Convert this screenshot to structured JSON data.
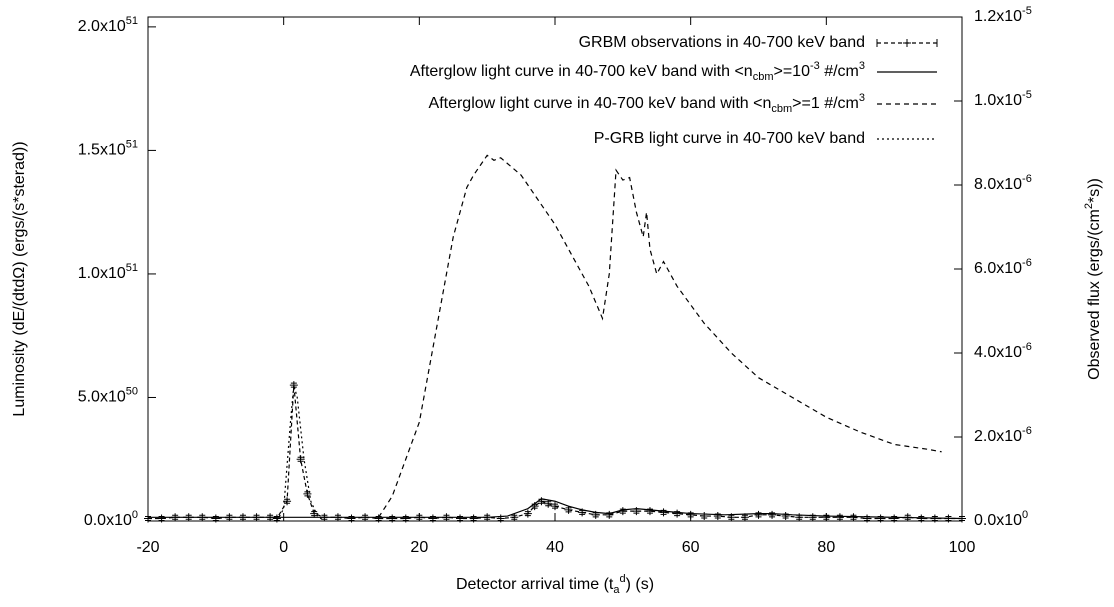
{
  "chart_data": {
    "type": "line",
    "xlabel": "Detector arrival time (t_{a}^{d}) (s)",
    "ylabel": "Luminosity (dE/(dtdΩ) (ergs/(s*sterad))",
    "y2label": "Observed flux (ergs/(cm^{2}*s))",
    "xlim": [
      -20,
      100
    ],
    "xticks": [
      -20,
      0,
      20,
      40,
      60,
      80,
      100
    ],
    "ylim": [
      0,
      2.04e+51
    ],
    "yticks": [
      {
        "value": 0,
        "label": "0.0x10^{0}"
      },
      {
        "value": 5e+50,
        "label": "5.0x10^{50}"
      },
      {
        "value": 1e+51,
        "label": "1.0x10^{51}"
      },
      {
        "value": 1.5e+51,
        "label": "1.5x10^{51}"
      },
      {
        "value": 2e+51,
        "label": "2.0x10^{51}"
      }
    ],
    "y2lim": [
      0,
      1.2e-05
    ],
    "y2ticks": [
      {
        "value": 0,
        "label": "0.0x10^{0}"
      },
      {
        "value": 2e-06,
        "label": "2.0x10^{-6}"
      },
      {
        "value": 4e-06,
        "label": "4.0x10^{-6}"
      },
      {
        "value": 6e-06,
        "label": "6.0x10^{-6}"
      },
      {
        "value": 8e-06,
        "label": "8.0x10^{-6}"
      },
      {
        "value": 1e-05,
        "label": "1.0x10^{-5}"
      },
      {
        "value": 1.2e-05,
        "label": "1.2x10^{-5}"
      }
    ],
    "legend": "top-right",
    "series": [
      {
        "name": "GRBM observations in 40-700 keV band",
        "color": "#000000",
        "style": "points-errorbars",
        "x": [
          -20,
          -18,
          -16,
          -14,
          -12,
          -10,
          -8,
          -6,
          -4,
          -2,
          -1,
          0.5,
          1.5,
          2.5,
          3.5,
          4.5,
          6,
          8,
          10,
          12,
          14,
          16,
          18,
          20,
          22,
          24,
          26,
          28,
          30,
          32,
          34,
          36,
          37,
          38,
          39,
          40,
          42,
          44,
          46,
          48,
          50,
          52,
          54,
          56,
          58,
          60,
          62,
          64,
          66,
          68,
          70,
          72,
          74,
          76,
          78,
          80,
          82,
          84,
          86,
          88,
          90,
          92,
          94,
          96,
          98,
          100
        ],
        "values": [
          1e+49,
          1e+49,
          1.5e+49,
          1.5e+49,
          1.5e+49,
          1e+49,
          1.5e+49,
          1.5e+49,
          1.5e+49,
          1.5e+49,
          1e+49,
          8e+49,
          5.5e+50,
          2.5e+50,
          1.1e+50,
          3e+49,
          1.5e+49,
          1.5e+49,
          1e+49,
          1.5e+49,
          1e+49,
          1e+49,
          1e+49,
          1.5e+49,
          1e+49,
          1.5e+49,
          1e+49,
          1e+49,
          1.5e+49,
          1e+49,
          1.5e+49,
          3e+49,
          6e+49,
          8e+49,
          7e+49,
          6e+49,
          4.5e+49,
          3.5e+49,
          2.5e+49,
          2.5e+49,
          4e+49,
          4e+49,
          4e+49,
          3.5e+49,
          3e+49,
          2.5e+49,
          2e+49,
          2e+49,
          1.5e+49,
          1.5e+49,
          2.5e+49,
          2.5e+49,
          2e+49,
          1.5e+49,
          1.5e+49,
          1.5e+49,
          1.5e+49,
          1.5e+49,
          1e+49,
          1e+49,
          1e+49,
          1.5e+49,
          1e+49,
          1e+49,
          1e+49,
          1e+49
        ]
      },
      {
        "name": "Afterglow light curve in 40-700 keV band with <n_{cbm}>=10^{-3} #/cm^{3}",
        "color": "#000000",
        "style": "solid",
        "x": [
          -20,
          0,
          10,
          20,
          30,
          33,
          36,
          38,
          40,
          42,
          44,
          46,
          48,
          50,
          52,
          54,
          56,
          60,
          65,
          70,
          72,
          75,
          80,
          90,
          100
        ],
        "values": [
          1.5e+49,
          1.5e+49,
          1.5e+49,
          1.5e+49,
          1.5e+49,
          2e+49,
          5e+49,
          9e+49,
          8e+49,
          6e+49,
          4.5e+49,
          3.5e+49,
          3e+49,
          4.5e+49,
          5e+49,
          4.5e+49,
          4e+49,
          3e+49,
          2.5e+49,
          3e+49,
          3e+49,
          2.5e+49,
          2e+49,
          1.5e+49,
          1e+49
        ]
      },
      {
        "name": "Afterglow light curve in 40-700 keV band with <n_{cbm}>=1 #/cm^{3}",
        "color": "#000000",
        "style": "dashed",
        "x": [
          14,
          16,
          18,
          20,
          22,
          25,
          27,
          28,
          29,
          30,
          31,
          32,
          35,
          40,
          45,
          47,
          48,
          49,
          50,
          51,
          52,
          53,
          53.5,
          54,
          55,
          56,
          58,
          62,
          66,
          70,
          75,
          80,
          85,
          90,
          95,
          97
        ],
        "values": [
          1.5e+49,
          1e+50,
          2.5e+50,
          4e+50,
          7e+50,
          1.15e+51,
          1.35e+51,
          1.4e+51,
          1.44e+51,
          1.48e+51,
          1.46e+51,
          1.47e+51,
          1.4e+51,
          1.2e+51,
          9.5e+50,
          8.2e+50,
          1e+51,
          1.42e+51,
          1.38e+51,
          1.39e+51,
          1.25e+51,
          1.15e+51,
          1.25e+51,
          1.1e+51,
          1e+51,
          1.05e+51,
          9.5e+50,
          8e+50,
          6.8e+50,
          5.8e+50,
          5e+50,
          4.2e+50,
          3.6e+50,
          3.1e+50,
          2.9e+50,
          2.8e+50
        ]
      },
      {
        "name": "P-GRB light curve in 40-700 keV band",
        "color": "#000000",
        "style": "dotted",
        "x": [
          -1,
          0,
          1,
          1.5,
          2,
          3,
          4,
          5,
          6
        ],
        "values": [
          0,
          5e+49,
          4e+50,
          5.5e+50,
          5e+50,
          2.5e+50,
          8e+49,
          2e+49,
          0
        ]
      }
    ]
  }
}
